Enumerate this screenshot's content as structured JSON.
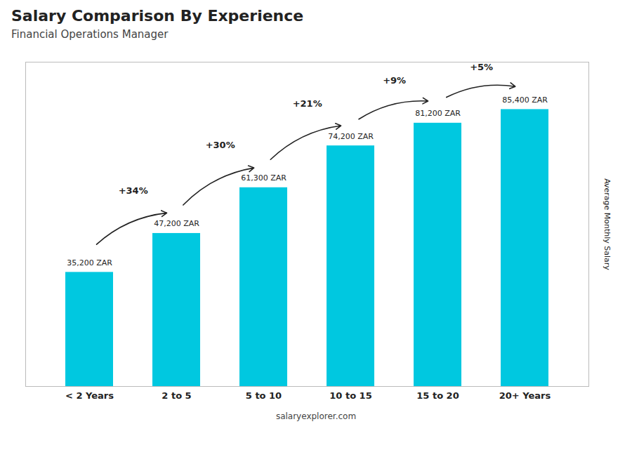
{
  "chart_data": {
    "type": "bar",
    "title": "Salary Comparison By Experience",
    "subtitle": "Financial Operations Manager",
    "categories": [
      "< 2 Years",
      "2 to 5",
      "5 to 10",
      "10 to 15",
      "15 to 20",
      "20+ Years"
    ],
    "values": [
      35200,
      47200,
      61300,
      74200,
      81200,
      85400
    ],
    "value_labels": [
      "35,200 ZAR",
      "47,200 ZAR",
      "61,300 ZAR",
      "74,200 ZAR",
      "81,200 ZAR",
      "85,400 ZAR"
    ],
    "data_labels": true,
    "color": "#00c8e0",
    "ylim": [
      0,
      100000
    ],
    "yticks": [],
    "tick_labels": "x",
    "grid": false,
    "ylabel": "Average Monthly Salary",
    "annotations": [
      "+34%",
      "+30%",
      "+21%",
      "+9%",
      "+5%"
    ],
    "caption": "salaryexplorer.com"
  }
}
